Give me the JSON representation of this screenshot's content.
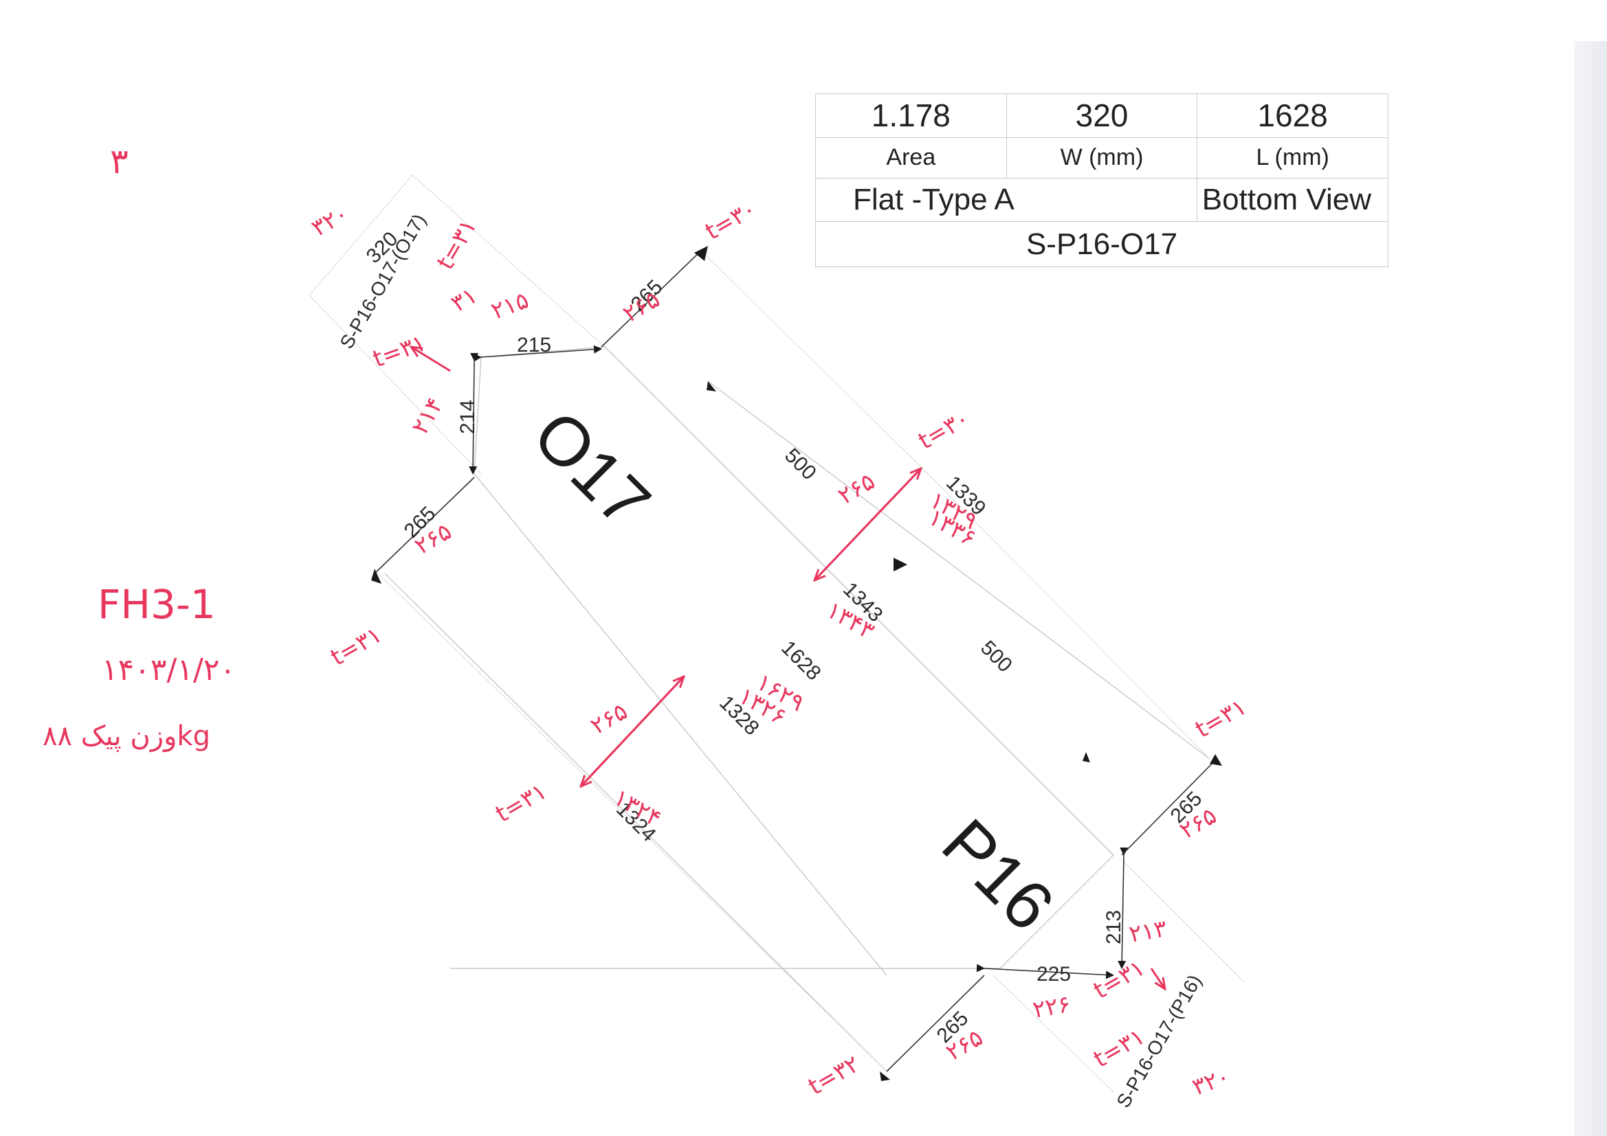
{
  "title_block": {
    "area_value": "1.178",
    "width_value": "320",
    "length_value": "1628",
    "area_label": "Area",
    "width_label": "W (mm)",
    "length_label": "L (mm)",
    "type_label": "Flat -Type A",
    "view_label": "Bottom View",
    "drawing_code": "S-P16-O17"
  },
  "drawing": {
    "label_top": "O17",
    "label_bottom": "P16",
    "code_top": "S-P16-O17-(O17)",
    "code_bottom": "S-P16-O17-(P16)",
    "dims": {
      "width_top": "320",
      "top_edge": "215",
      "top_left_side": "214",
      "left_offset_upper": "265",
      "right_offset_upper": "265",
      "gap_upper": "500",
      "length_a": "1339",
      "length_b": "1343",
      "length_total": "1628",
      "length_c": "1328",
      "length_d": "1324",
      "gap_lower": "500",
      "right_offset_lower": "265",
      "bottom_right_side": "213",
      "bottom_edge": "225",
      "left_offset_lower": "265"
    }
  },
  "handwriting": {
    "page_mark": "۳",
    "code": "FH3-1",
    "date": "۱۴۰۳/۱/۲۰",
    "weight": "وزن پیک ۸۸kg",
    "fa_width_top": "۳۲۰",
    "fa_top_edge": "۲۱۵",
    "fa_side": "۲۱۴",
    "fa_offset_a": "۲۶۵",
    "fa_offset_b": "۲۶۵",
    "fa_len_a": "۱۳۳۶",
    "fa_len_b": "۱۳۴۳",
    "fa_len_c": "۱۶۲۹",
    "fa_len_d": "۱۳۲۶",
    "fa_len_e": "۱۳۲۴",
    "fa_offset_c": "۲۶۵",
    "fa_side_b": "۲۱۳",
    "fa_edge_b": "۲۲۶",
    "fa_offset_d": "۲۶۵",
    "fa_width_bottom": "۳۲۰",
    "fa_arrow_a": "۲۶۵",
    "fa_arrow_b": "۲۶۵",
    "t1": "t=۳۰",
    "t2": "t=۳۰",
    "t3": "t=۳۱",
    "t4": "t=۳۱",
    "t5": "t=۳۱",
    "t6": "t=۳۱",
    "t7": "t=۳۱",
    "t8": "t=۳۲",
    "t9": "t=۳۱",
    "t10": "t=۳۱",
    "t11": "۱۳۲۹",
    "t12": "۳۱"
  }
}
